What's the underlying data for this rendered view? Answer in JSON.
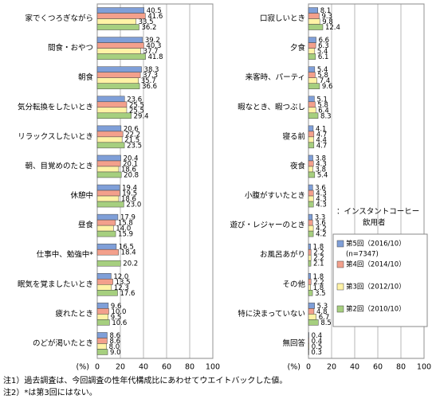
{
  "chart_data": [
    {
      "type": "bar",
      "orientation": "horizontal",
      "xlabel": "(%)",
      "categories": [
        "家でくつろぎながら",
        "間食・おやつ",
        "朝食",
        "気分転換をしたいとき",
        "リラックスしたいとき",
        "朝、目覚めのたとき",
        "休憩中",
        "昼食",
        "仕事中、勉強中*",
        "眠気を覚ましたいとき",
        "疲れたとき",
        "のどが渇いたとき"
      ],
      "series": [
        {
          "name": "第5回（2016/10）",
          "color": "#7f9fd8",
          "values": [
            40.5,
            39.2,
            38.3,
            23.6,
            20.6,
            20.4,
            19.4,
            17.9,
            16.5,
            12.0,
            9.6,
            8.6
          ],
          "value_labels": [
            "40.5",
            "39.2",
            "38.3",
            "23.6",
            "20.6",
            "20.4",
            "19.4",
            "17.9",
            "16.5",
            "12.0",
            "9.6",
            "8.6"
          ]
        },
        {
          "name": "第4回（2014/10）",
          "color": "#f3a08c",
          "values": [
            41.6,
            40.3,
            37.3,
            25.5,
            22.2,
            20.1,
            19.5,
            15.8,
            18.4,
            13.5,
            10.0,
            8.6
          ],
          "value_labels": [
            "41.6",
            "40.3",
            "37.3",
            "25.5",
            "22.2",
            "20.1",
            "19.5",
            "15.8",
            "18.4",
            "13.5",
            "10.0",
            "8.6"
          ]
        },
        {
          "name": "第3回（2012/10）",
          "color": "#fff3a6",
          "values": [
            33.5,
            37.7,
            35.7,
            25.5,
            21.5,
            18.6,
            18.6,
            14.0,
            null,
            12.3,
            9.5,
            8.0
          ],
          "value_labels": [
            "33.5",
            "37.7",
            "35.7",
            "25.5",
            "21.5",
            "18.6",
            "18.6",
            "14.0",
            null,
            "12.3",
            "9.5",
            "8.0"
          ]
        },
        {
          "name": "第2回（2010/10）",
          "color": "#a6cf7f",
          "values": [
            36.2,
            41.8,
            36.6,
            29.4,
            23.5,
            20.8,
            23.0,
            15.9,
            20.2,
            17.6,
            10.6,
            9.0
          ],
          "value_labels": [
            "36.2",
            "41.8",
            "36.6",
            "29.4",
            "23.5",
            "20.8",
            "23.0",
            "15.9",
            "20.2",
            "17.6",
            "10.6",
            "9.0"
          ]
        }
      ],
      "xlim": [
        0,
        100
      ],
      "xticks": [
        0,
        20,
        40,
        60,
        80,
        100
      ],
      "grid": true
    },
    {
      "type": "bar",
      "orientation": "horizontal",
      "xlabel": "(%)",
      "categories": [
        "口寂しいとき",
        "夕食",
        "来客時、パーティ",
        "暇なとき、暇つぶし",
        "寝る前",
        "夜食",
        "小腹がすいたとき",
        "遊び・レジャーのとき",
        "お風呂あがり",
        "その他",
        "特に決まっていない",
        "無回答"
      ],
      "series": [
        {
          "name": "第5回（2016/10）",
          "color": "#7f9fd8",
          "values": [
            8.1,
            6.6,
            5.4,
            5.1,
            4.1,
            3.8,
            3.6,
            3.3,
            1.8,
            1.8,
            5.3,
            0.4
          ]
        },
        {
          "name": "第4回（2014/10）",
          "color": "#f3a08c",
          "values": [
            9.3,
            6.3,
            5.8,
            5.8,
            4.7,
            4.3,
            4.3,
            3.6,
            2.2,
            2.2,
            4.8,
            0.4
          ]
        },
        {
          "name": "第3回（2012/10）",
          "color": "#fff3a6",
          "values": [
            9.8,
            5.4,
            7.4,
            6.4,
            4.4,
            3.8,
            4.3,
            4.2,
            2.2,
            1.8,
            6.7,
            0.5
          ]
        },
        {
          "name": "第2回（2010/10）",
          "color": "#a6cf7f",
          "values": [
            12.4,
            6.1,
            9.6,
            8.3,
            4.7,
            5.4,
            4.3,
            4.2,
            2.1,
            3.5,
            8.5,
            0.3
          ]
        }
      ],
      "xlim": [
        0,
        100
      ],
      "xticks": [
        0,
        20,
        40,
        60,
        80,
        100
      ],
      "grid": true,
      "legend_title": [
        "：インスタントコーヒー",
        "飲用者"
      ],
      "legend_note": "(n=7347)"
    }
  ],
  "notes": [
    "注1）過去調査は、今回調査の性年代構成比にあわせてウエイトバックした値。",
    "注2）*は第3回にはない。"
  ]
}
